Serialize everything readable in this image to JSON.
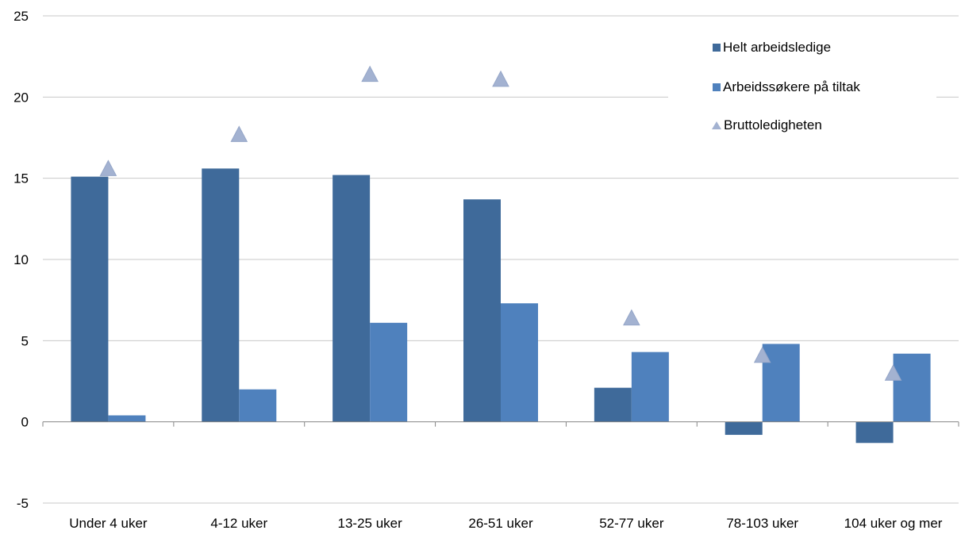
{
  "chart_data": {
    "type": "bar",
    "categories": [
      "Under 4 uker",
      "4-12 uker",
      "13-25 uker",
      "26-51 uker",
      "52-77 uker",
      "78-103 uker",
      "104 uker og mer"
    ],
    "series": [
      {
        "name": "Helt arbeidsledige",
        "kind": "bar",
        "color": "#3f6a9a",
        "values": [
          15.1,
          15.6,
          15.2,
          13.7,
          2.1,
          -0.8,
          -1.3
        ]
      },
      {
        "name": "Arbeidssøkere på tiltak",
        "kind": "bar",
        "color": "#4f81bd",
        "values": [
          0.4,
          2.0,
          6.1,
          7.3,
          4.3,
          4.8,
          4.2
        ]
      },
      {
        "name": "Bruttoledigheten",
        "kind": "marker-triangle",
        "color": "#a3b2d1",
        "values": [
          15.6,
          17.7,
          21.4,
          21.1,
          6.4,
          4.1,
          3.0
        ]
      }
    ],
    "ylim": [
      -5,
      25
    ],
    "yticks": [
      -5,
      0,
      5,
      10,
      15,
      20,
      25
    ],
    "title": "",
    "xlabel": "",
    "ylabel": "",
    "grid": true,
    "legend_position": "top-right"
  }
}
